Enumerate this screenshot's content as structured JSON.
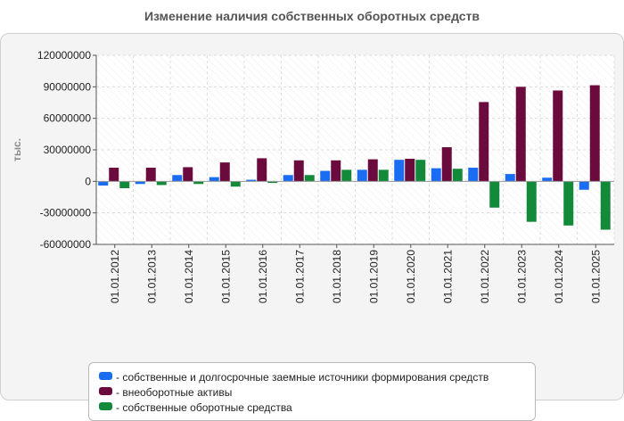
{
  "chart_data": {
    "type": "bar",
    "title": "Изменение наличия собственных оборотных средств",
    "xlabel": "",
    "ylabel": "тыс.",
    "ylim": [
      -60000000,
      120000000
    ],
    "yticks": [
      120000000,
      90000000,
      60000000,
      30000000,
      0,
      -30000000,
      -60000000
    ],
    "ytick_labels": [
      "120000000",
      "90000000",
      "60000000",
      "30000000",
      "0",
      "-30000000",
      "-60000000"
    ],
    "grid": true,
    "legend_position": "bottom",
    "categories": [
      "01.01.2012",
      "01.01.2013",
      "01.01.2014",
      "01.01.2015",
      "01.01.2016",
      "01.01.2017",
      "01.01.2018",
      "01.01.2019",
      "01.01.2020",
      "01.01.2021",
      "01.01.2022",
      "01.01.2023",
      "01.01.2024",
      "01.01.2025"
    ],
    "series": [
      {
        "name": "- собственные и долгосрочные заемные источники формирования средств",
        "color": "#1a6cf2",
        "values": [
          -4000000,
          -2500000,
          6000000,
          4000000,
          1500000,
          6000000,
          10000000,
          11000000,
          20500000,
          12500000,
          13000000,
          7000000,
          3500000,
          -8000000
        ]
      },
      {
        "name": "- внеоборотные активы",
        "color": "#6b0a3c",
        "values": [
          13000000,
          13000000,
          13500000,
          18000000,
          22000000,
          20000000,
          20000000,
          21000000,
          21500000,
          32500000,
          75500000,
          90000000,
          86500000,
          91500000
        ]
      },
      {
        "name": "- собственные оборотные средства",
        "color": "#128a3a",
        "values": [
          -6500000,
          -3500000,
          -2500000,
          -5000000,
          -1500000,
          6000000,
          11000000,
          11000000,
          20500000,
          12000000,
          -25000000,
          -38500000,
          -42000000,
          -46000000
        ]
      }
    ]
  }
}
